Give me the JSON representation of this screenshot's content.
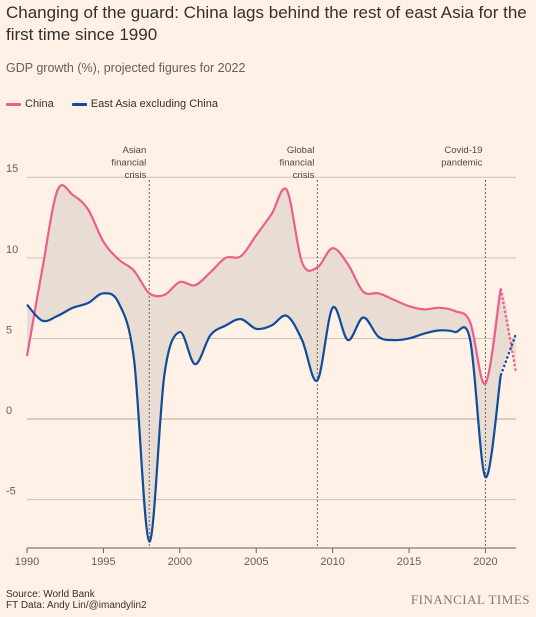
{
  "header": {
    "title": "Changing of the guard: China lags behind the rest of east Asia for the first time since 1990",
    "subtitle": "GDP growth (%), projected figures for 2022"
  },
  "footer": {
    "source_line1": "Source: World Bank",
    "source_line2": "FT Data: Andy Lin/@imandylin2",
    "brand": "FINANCIAL TIMES"
  },
  "colors": {
    "china": "#eb5e8d",
    "east_asia": "#0f4c9a",
    "band_fill": "#e9dcd3",
    "grid": "#ccc1b7",
    "axis_text": "#66605c"
  },
  "chart_data": {
    "type": "line",
    "xlim": [
      1990,
      2022
    ],
    "ylim": [
      -8,
      17
    ],
    "x_ticks": [
      1990,
      1995,
      2000,
      2005,
      2010,
      2015,
      2020
    ],
    "y_ticks": [
      -5,
      0,
      5,
      10,
      15
    ],
    "grid": true,
    "legend_position": "top-left",
    "projected_from": 2021,
    "series": [
      {
        "name": "China",
        "x": [
          1990,
          1991,
          1992,
          1993,
          1994,
          1995,
          1996,
          1997,
          1998,
          1999,
          2000,
          2001,
          2002,
          2003,
          2004,
          2005,
          2006,
          2007,
          2008,
          2009,
          2010,
          2011,
          2012,
          2013,
          2014,
          2015,
          2016,
          2017,
          2018,
          2019,
          2020,
          2021,
          2022
        ],
        "values": [
          3.9,
          9.3,
          14.2,
          13.9,
          13.0,
          11.0,
          9.9,
          9.2,
          7.8,
          7.7,
          8.5,
          8.3,
          9.1,
          10.0,
          10.1,
          11.4,
          12.7,
          14.2,
          9.7,
          9.4,
          10.6,
          9.6,
          7.9,
          7.8,
          7.4,
          7.0,
          6.8,
          6.9,
          6.7,
          6.0,
          2.2,
          8.1,
          2.9
        ]
      },
      {
        "name": "East Asia excluding China",
        "x": [
          1990,
          1991,
          1992,
          1993,
          1994,
          1995,
          1996,
          1997,
          1998,
          1999,
          2000,
          2001,
          2002,
          2003,
          2004,
          2005,
          2006,
          2007,
          2008,
          2009,
          2010,
          2011,
          2012,
          2013,
          2014,
          2015,
          2016,
          2017,
          2018,
          2019,
          2020,
          2021,
          2022
        ],
        "values": [
          7.1,
          6.1,
          6.4,
          6.9,
          7.2,
          7.8,
          7.2,
          3.7,
          -7.6,
          2.8,
          5.4,
          3.4,
          5.2,
          5.8,
          6.2,
          5.6,
          5.8,
          6.4,
          4.9,
          2.4,
          6.9,
          4.9,
          6.3,
          5.1,
          4.9,
          5.0,
          5.3,
          5.5,
          5.4,
          4.9,
          -3.6,
          2.7,
          5.3
        ]
      }
    ],
    "annotations": [
      {
        "x": 1998,
        "lines": [
          "Asian",
          "financial",
          "crisis"
        ]
      },
      {
        "x": 2009,
        "lines": [
          "Global",
          "financial",
          "crisis"
        ]
      },
      {
        "x": 2020,
        "lines": [
          "Covid-19",
          "pandemic"
        ]
      }
    ]
  }
}
